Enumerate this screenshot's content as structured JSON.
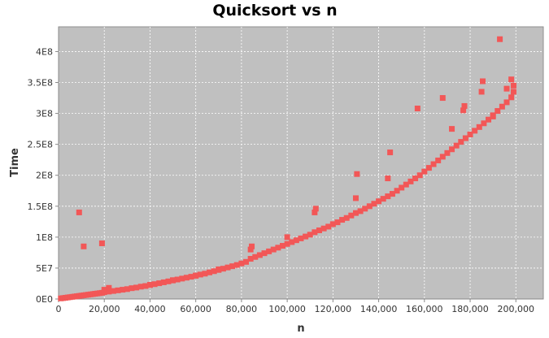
{
  "chart_data": {
    "type": "scatter",
    "title": "Quicksort vs n",
    "xlabel": "n",
    "ylabel": "Time",
    "xlim": [
      0,
      212000
    ],
    "ylim": [
      0,
      440000000
    ],
    "xticks": [
      0,
      20000,
      40000,
      60000,
      80000,
      100000,
      120000,
      140000,
      160000,
      180000,
      200000
    ],
    "xtick_labels": [
      "0",
      "20,000",
      "40,000",
      "60,000",
      "80,000",
      "100,000",
      "120,000",
      "140,000",
      "160,000",
      "180,000",
      "200,000"
    ],
    "yticks": [
      0,
      50000000,
      100000000,
      150000000,
      200000000,
      250000000,
      300000000,
      350000000,
      400000000
    ],
    "ytick_labels": [
      "0E0",
      "5E7",
      "1E8",
      "1.5E8",
      "2E8",
      "2.5E8",
      "3E8",
      "3.5E8",
      "4E8"
    ],
    "grid": true,
    "colors": {
      "plot_background": "#c0c0c0",
      "grid": "#ffffff",
      "marker": "#f25757"
    },
    "series": [
      {
        "points": [
          [
            1000,
            1000000
          ],
          [
            2000,
            1500000
          ],
          [
            3000,
            2000000
          ],
          [
            4000,
            2500000
          ],
          [
            5000,
            3000000
          ],
          [
            6000,
            3500000
          ],
          [
            7000,
            4000000
          ],
          [
            8000,
            4500000
          ],
          [
            9000,
            5000000
          ],
          [
            10000,
            5500000
          ],
          [
            11000,
            6000000
          ],
          [
            12000,
            6500000
          ],
          [
            13000,
            7000000
          ],
          [
            14000,
            7500000
          ],
          [
            15000,
            8000000
          ],
          [
            16000,
            8500000
          ],
          [
            17000,
            9000000
          ],
          [
            18000,
            9500000
          ],
          [
            19000,
            10000000
          ],
          [
            20000,
            11000000
          ],
          [
            22000,
            12000000
          ],
          [
            24000,
            13000000
          ],
          [
            26000,
            14000000
          ],
          [
            28000,
            15000000
          ],
          [
            30000,
            16000000
          ],
          [
            32000,
            17500000
          ],
          [
            34000,
            18500000
          ],
          [
            36000,
            20000000
          ],
          [
            38000,
            21000000
          ],
          [
            40000,
            22500000
          ],
          [
            42000,
            24000000
          ],
          [
            44000,
            25500000
          ],
          [
            46000,
            27000000
          ],
          [
            48000,
            28500000
          ],
          [
            50000,
            30000000
          ],
          [
            52000,
            31500000
          ],
          [
            54000,
            33000000
          ],
          [
            56000,
            34500000
          ],
          [
            58000,
            36000000
          ],
          [
            60000,
            37500000
          ],
          [
            62000,
            39500000
          ],
          [
            64000,
            41000000
          ],
          [
            66000,
            43000000
          ],
          [
            68000,
            45000000
          ],
          [
            70000,
            47000000
          ],
          [
            72000,
            49000000
          ],
          [
            74000,
            51000000
          ],
          [
            76000,
            53000000
          ],
          [
            78000,
            55000000
          ],
          [
            80000,
            57500000
          ],
          [
            82000,
            60000000
          ],
          [
            84000,
            65000000
          ],
          [
            86000,
            68000000
          ],
          [
            88000,
            71000000
          ],
          [
            90000,
            74000000
          ],
          [
            92000,
            77000000
          ],
          [
            94000,
            80000000
          ],
          [
            96000,
            83000000
          ],
          [
            98000,
            86000000
          ],
          [
            100000,
            89000000
          ],
          [
            102000,
            92000000
          ],
          [
            104000,
            95000000
          ],
          [
            106000,
            98000000
          ],
          [
            108000,
            101000000
          ],
          [
            110000,
            104000000
          ],
          [
            112000,
            108000000
          ],
          [
            114000,
            111000000
          ],
          [
            116000,
            114000000
          ],
          [
            118000,
            117000000
          ],
          [
            120000,
            121000000
          ],
          [
            122000,
            124000000
          ],
          [
            124000,
            128000000
          ],
          [
            126000,
            131000000
          ],
          [
            128000,
            135000000
          ],
          [
            130000,
            139000000
          ],
          [
            132000,
            142000000
          ],
          [
            134000,
            146000000
          ],
          [
            136000,
            150000000
          ],
          [
            138000,
            154000000
          ],
          [
            140000,
            158000000
          ],
          [
            142000,
            162000000
          ],
          [
            144000,
            166000000
          ],
          [
            146000,
            170000000
          ],
          [
            148000,
            175000000
          ],
          [
            150000,
            180000000
          ],
          [
            152000,
            185000000
          ],
          [
            154000,
            190000000
          ],
          [
            156000,
            195000000
          ],
          [
            158000,
            200000000
          ],
          [
            160000,
            206000000
          ],
          [
            162000,
            212000000
          ],
          [
            164000,
            218000000
          ],
          [
            166000,
            224000000
          ],
          [
            168000,
            230000000
          ],
          [
            170000,
            236000000
          ],
          [
            172000,
            242000000
          ],
          [
            174000,
            248000000
          ],
          [
            176000,
            254000000
          ],
          [
            178000,
            260000000
          ],
          [
            180000,
            266000000
          ],
          [
            182000,
            272000000
          ],
          [
            184000,
            278000000
          ],
          [
            186000,
            284000000
          ],
          [
            188000,
            290000000
          ],
          [
            190000,
            297000000
          ],
          [
            192000,
            304000000
          ],
          [
            194000,
            311000000
          ],
          [
            196000,
            318000000
          ],
          [
            198000,
            326000000
          ],
          [
            199000,
            335000000
          ],
          [
            9000,
            140000000
          ],
          [
            11000,
            85000000
          ],
          [
            19000,
            90000000
          ],
          [
            20000,
            15000000
          ],
          [
            22000,
            18000000
          ],
          [
            84000,
            80000000
          ],
          [
            84500,
            85000000
          ],
          [
            100000,
            100000000
          ],
          [
            112000,
            140000000
          ],
          [
            112500,
            146000000
          ],
          [
            130000,
            163000000
          ],
          [
            130500,
            202000000
          ],
          [
            144000,
            195000000
          ],
          [
            145000,
            237000000
          ],
          [
            157000,
            308000000
          ],
          [
            168000,
            325000000
          ],
          [
            172000,
            275000000
          ],
          [
            177000,
            305000000
          ],
          [
            177500,
            312000000
          ],
          [
            185000,
            335000000
          ],
          [
            185500,
            352000000
          ],
          [
            190000,
            295000000
          ],
          [
            193000,
            420000000
          ],
          [
            196000,
            340000000
          ],
          [
            198000,
            355000000
          ],
          [
            199000,
            345000000
          ],
          [
            70000,
            48000000
          ],
          [
            60000,
            38000000
          ],
          [
            50000,
            30500000
          ],
          [
            40000,
            23000000
          ]
        ]
      }
    ]
  }
}
